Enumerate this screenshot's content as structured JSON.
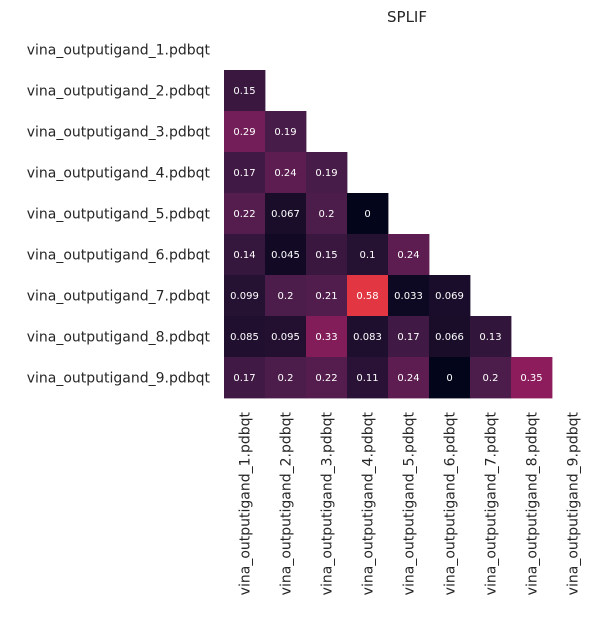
{
  "chart_data": {
    "type": "heatmap",
    "title": "SPLIF",
    "mask": "upper-triangle-and-diagonal",
    "colorbar": false,
    "colormap": "rocket",
    "vmin": 0,
    "vmax": 1,
    "row_labels": [
      "vina_outputigand_1.pdbqt",
      "vina_outputigand_2.pdbqt",
      "vina_outputigand_3.pdbqt",
      "vina_outputigand_4.pdbqt",
      "vina_outputigand_5.pdbqt",
      "vina_outputigand_6.pdbqt",
      "vina_outputigand_7.pdbqt",
      "vina_outputigand_8.pdbqt",
      "vina_outputigand_9.pdbqt"
    ],
    "col_labels": [
      "vina_outputigand_1.pdbqt",
      "vina_outputigand_2.pdbqt",
      "vina_outputigand_3.pdbqt",
      "vina_outputigand_4.pdbqt",
      "vina_outputigand_5.pdbqt",
      "vina_outputigand_6.pdbqt",
      "vina_outputigand_7.pdbqt",
      "vina_outputigand_8.pdbqt",
      "vina_outputigand_9.pdbqt"
    ],
    "values": [
      [],
      [
        0.15
      ],
      [
        0.29,
        0.19
      ],
      [
        0.17,
        0.24,
        0.19
      ],
      [
        0.22,
        0.067,
        0.2,
        0
      ],
      [
        0.14,
        0.045,
        0.15,
        0.1,
        0.24
      ],
      [
        0.099,
        0.2,
        0.21,
        0.58,
        0.033,
        0.069
      ],
      [
        0.085,
        0.095,
        0.33,
        0.083,
        0.17,
        0.066,
        0.13
      ],
      [
        0.17,
        0.2,
        0.22,
        0.11,
        0.24,
        0,
        0.2,
        0.35
      ]
    ]
  }
}
